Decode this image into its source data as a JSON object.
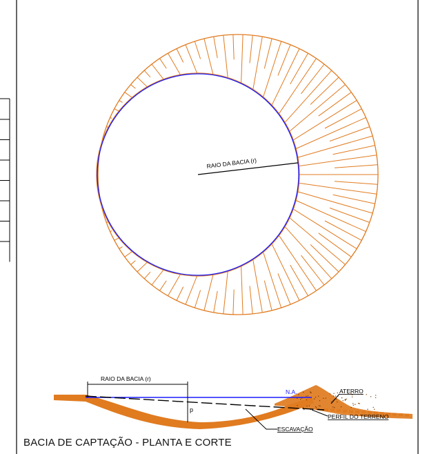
{
  "drawing": {
    "caption": "BACIA DE CAPTAÇÃO - PLANTA E CORTE",
    "plan": {
      "radius_label": "RAIO DA BACIA (r)"
    },
    "section": {
      "radius_label": "RAIO DA BACIA (r)",
      "water_level_label": "N.A.",
      "depth_label": "p",
      "embankment_label": "ATERRO",
      "terrain_label": "PERFIL DO TERRENO",
      "excavation_label": "ESCAVAÇÃO"
    },
    "table_rows": 8
  },
  "colors": {
    "embankment": "#e07b20",
    "water": "#1a1aff",
    "line": "#000000"
  }
}
